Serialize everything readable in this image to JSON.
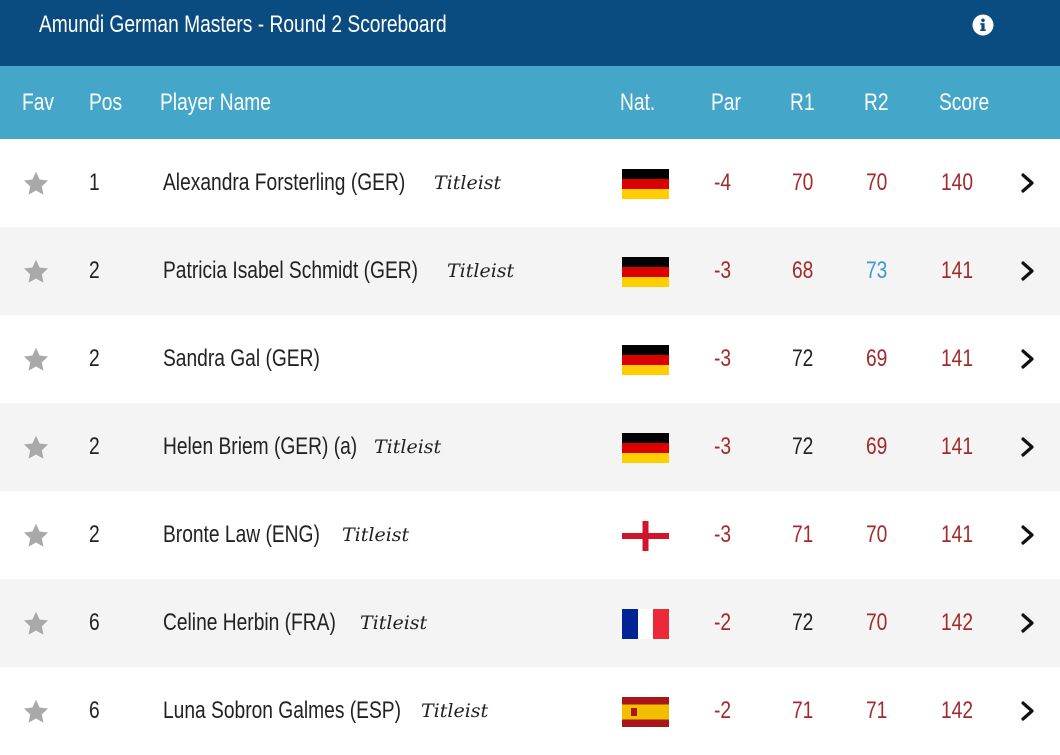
{
  "title": "Amundi German Masters - Round 2 Scoreboard",
  "header": {
    "fav": "Fav",
    "pos": "Pos",
    "name": "Player Name",
    "nat": "Nat.",
    "par": "Par",
    "r1": "R1",
    "r2": "R2",
    "score": "Score"
  },
  "colors": {
    "title_bar": "#0b4c80",
    "header_bar": "#44a6c9",
    "over_par_red": "#a3292a",
    "under_par_blue": "#3a9ad6",
    "par_dark": "#222222"
  },
  "rows": [
    {
      "pos": "1",
      "name": "Alexandra Forsterling (GER)",
      "brand": "Titleist",
      "nat": "GER",
      "par": "-4",
      "r1": "70",
      "r2": "70",
      "score": "140"
    },
    {
      "pos": "2",
      "name": "Patricia Isabel Schmidt (GER)",
      "brand": "Titleist",
      "nat": "GER",
      "par": "-3",
      "r1": "68",
      "r2": "73",
      "score": "141"
    },
    {
      "pos": "2",
      "name": "Sandra Gal (GER)",
      "brand": "",
      "nat": "GER",
      "par": "-3",
      "r1": "72",
      "r2": "69",
      "score": "141"
    },
    {
      "pos": "2",
      "name": "Helen Briem (GER) (a)",
      "brand": "Titleist",
      "nat": "GER",
      "par": "-3",
      "r1": "72",
      "r2": "69",
      "score": "141"
    },
    {
      "pos": "2",
      "name": "Bronte Law (ENG)",
      "brand": "Titleist",
      "nat": "ENG",
      "par": "-3",
      "r1": "71",
      "r2": "70",
      "score": "141"
    },
    {
      "pos": "6",
      "name": "Celine Herbin (FRA)",
      "brand": "Titleist",
      "nat": "FRA",
      "par": "-2",
      "r1": "72",
      "r2": "70",
      "score": "142"
    },
    {
      "pos": "6",
      "name": "Luna Sobron Galmes (ESP)",
      "brand": "Titleist",
      "nat": "ESP",
      "par": "-2",
      "r1": "71",
      "r2": "71",
      "score": "142"
    }
  ]
}
